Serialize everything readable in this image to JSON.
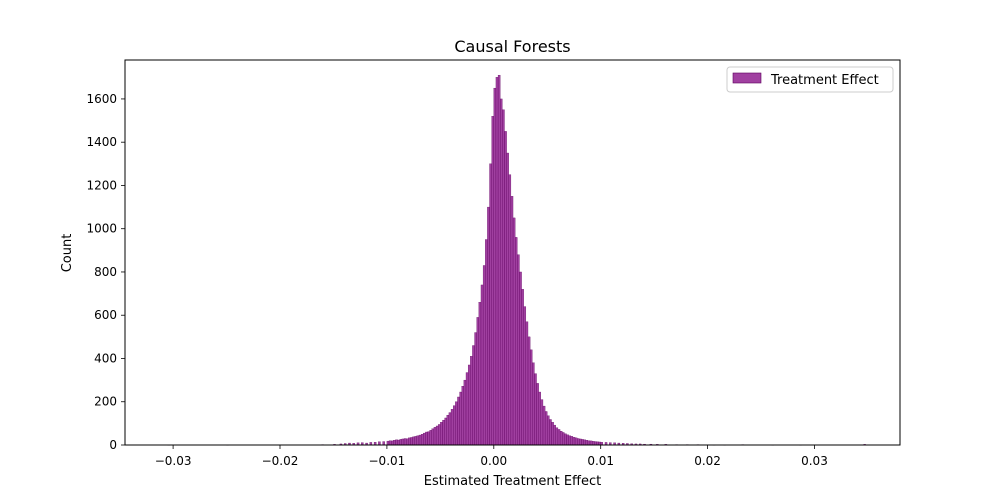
{
  "chart_data": {
    "type": "bar",
    "title": "Causal Forests",
    "xlabel": "Estimated Treatment Effect",
    "ylabel": "Count",
    "xlim": [
      -0.0345,
      0.038
    ],
    "ylim": [
      0,
      1780
    ],
    "x_ticks": [
      {
        "value": -0.03,
        "label": "−0.03"
      },
      {
        "value": -0.02,
        "label": "−0.02"
      },
      {
        "value": -0.01,
        "label": "−0.01"
      },
      {
        "value": 0.0,
        "label": "0.00"
      },
      {
        "value": 0.01,
        "label": "0.01"
      },
      {
        "value": 0.02,
        "label": "0.02"
      },
      {
        "value": 0.03,
        "label": "0.03"
      }
    ],
    "y_ticks": [
      {
        "value": 0,
        "label": "0"
      },
      {
        "value": 200,
        "label": "200"
      },
      {
        "value": 400,
        "label": "400"
      },
      {
        "value": 600,
        "label": "600"
      },
      {
        "value": 800,
        "label": "800"
      },
      {
        "value": 1000,
        "label": "1000"
      },
      {
        "value": 1200,
        "label": "1200"
      },
      {
        "value": 1400,
        "label": "1400"
      },
      {
        "value": 1600,
        "label": "1600"
      }
    ],
    "grid": false,
    "legend": {
      "position": "top-right",
      "entries": [
        {
          "label": "Treatment Effect",
          "color": "#800080"
        }
      ]
    },
    "series": [
      {
        "name": "Treatment Effect",
        "color": "#800080",
        "alpha": 0.75,
        "bin_width": 0.0002,
        "bins": [
          [
            -0.0305,
            1
          ],
          [
            -0.025,
            1
          ],
          [
            -0.0161,
            2
          ],
          [
            -0.015,
            3
          ],
          [
            -0.0144,
            5
          ],
          [
            -0.014,
            7
          ],
          [
            -0.0136,
            9
          ],
          [
            -0.0132,
            8
          ],
          [
            -0.0128,
            10
          ],
          [
            -0.0124,
            11
          ],
          [
            -0.012,
            9
          ],
          [
            -0.0116,
            12
          ],
          [
            -0.0112,
            13
          ],
          [
            -0.0108,
            15
          ],
          [
            -0.0104,
            16
          ],
          [
            -0.01,
            18
          ],
          [
            -0.0098,
            20
          ],
          [
            -0.0096,
            19
          ],
          [
            -0.0094,
            22
          ],
          [
            -0.0092,
            24
          ],
          [
            -0.009,
            23
          ],
          [
            -0.0088,
            26
          ],
          [
            -0.0086,
            28
          ],
          [
            -0.0084,
            30
          ],
          [
            -0.0082,
            29
          ],
          [
            -0.008,
            33
          ],
          [
            -0.0078,
            35
          ],
          [
            -0.0076,
            38
          ],
          [
            -0.0074,
            40
          ],
          [
            -0.0072,
            43
          ],
          [
            -0.007,
            46
          ],
          [
            -0.0068,
            50
          ],
          [
            -0.0066,
            55
          ],
          [
            -0.0064,
            60
          ],
          [
            -0.0062,
            62
          ],
          [
            -0.006,
            68
          ],
          [
            -0.0058,
            75
          ],
          [
            -0.0056,
            82
          ],
          [
            -0.0054,
            88
          ],
          [
            -0.0052,
            95
          ],
          [
            -0.005,
            105
          ],
          [
            -0.0048,
            115
          ],
          [
            -0.0046,
            125
          ],
          [
            -0.0044,
            138
          ],
          [
            -0.0042,
            150
          ],
          [
            -0.004,
            165
          ],
          [
            -0.0038,
            182
          ],
          [
            -0.0036,
            200
          ],
          [
            -0.0034,
            222
          ],
          [
            -0.0032,
            245
          ],
          [
            -0.003,
            272
          ],
          [
            -0.0028,
            300
          ],
          [
            -0.0026,
            335
          ],
          [
            -0.0024,
            370
          ],
          [
            -0.0022,
            410
          ],
          [
            -0.002,
            460
          ],
          [
            -0.0018,
            520
          ],
          [
            -0.0016,
            590
          ],
          [
            -0.0014,
            660
          ],
          [
            -0.0012,
            740
          ],
          [
            -0.001,
            830
          ],
          [
            -0.0008,
            950
          ],
          [
            -0.0006,
            1100
          ],
          [
            -0.0004,
            1300
          ],
          [
            -0.0002,
            1520
          ],
          [
            0.0,
            1650
          ],
          [
            0.0002,
            1700
          ],
          [
            0.0004,
            1710
          ],
          [
            0.0006,
            1600
          ],
          [
            0.0008,
            1550
          ],
          [
            0.001,
            1450
          ],
          [
            0.0012,
            1350
          ],
          [
            0.0014,
            1250
          ],
          [
            0.0016,
            1150
          ],
          [
            0.0018,
            1050
          ],
          [
            0.002,
            960
          ],
          [
            0.0022,
            880
          ],
          [
            0.0024,
            800
          ],
          [
            0.0026,
            720
          ],
          [
            0.0028,
            640
          ],
          [
            0.003,
            570
          ],
          [
            0.0032,
            500
          ],
          [
            0.0034,
            440
          ],
          [
            0.0036,
            380
          ],
          [
            0.0038,
            330
          ],
          [
            0.004,
            285
          ],
          [
            0.0042,
            245
          ],
          [
            0.0044,
            210
          ],
          [
            0.0046,
            180
          ],
          [
            0.0048,
            155
          ],
          [
            0.005,
            135
          ],
          [
            0.0052,
            118
          ],
          [
            0.0054,
            105
          ],
          [
            0.0056,
            92
          ],
          [
            0.0058,
            80
          ],
          [
            0.006,
            72
          ],
          [
            0.0062,
            64
          ],
          [
            0.0064,
            58
          ],
          [
            0.0066,
            52
          ],
          [
            0.0068,
            47
          ],
          [
            0.007,
            43
          ],
          [
            0.0072,
            40
          ],
          [
            0.0074,
            36
          ],
          [
            0.0076,
            33
          ],
          [
            0.0078,
            30
          ],
          [
            0.008,
            28
          ],
          [
            0.0082,
            26
          ],
          [
            0.0084,
            24
          ],
          [
            0.0086,
            22
          ],
          [
            0.0088,
            20
          ],
          [
            0.009,
            19
          ],
          [
            0.0092,
            17
          ],
          [
            0.0094,
            16
          ],
          [
            0.0096,
            15
          ],
          [
            0.0098,
            14
          ],
          [
            0.01,
            13
          ],
          [
            0.0104,
            12
          ],
          [
            0.0108,
            11
          ],
          [
            0.0112,
            10
          ],
          [
            0.0116,
            9
          ],
          [
            0.012,
            8
          ],
          [
            0.0124,
            7
          ],
          [
            0.0128,
            6
          ],
          [
            0.0132,
            5
          ],
          [
            0.0136,
            5
          ],
          [
            0.014,
            4
          ],
          [
            0.0146,
            4
          ],
          [
            0.0152,
            3
          ],
          [
            0.016,
            3
          ],
          [
            0.017,
            2
          ],
          [
            0.018,
            2
          ],
          [
            0.019,
            2
          ],
          [
            0.0205,
            1
          ],
          [
            0.0215,
            1
          ],
          [
            0.0232,
            2
          ],
          [
            0.026,
            1
          ],
          [
            0.0286,
            1
          ],
          [
            0.0346,
            3
          ]
        ]
      }
    ]
  }
}
